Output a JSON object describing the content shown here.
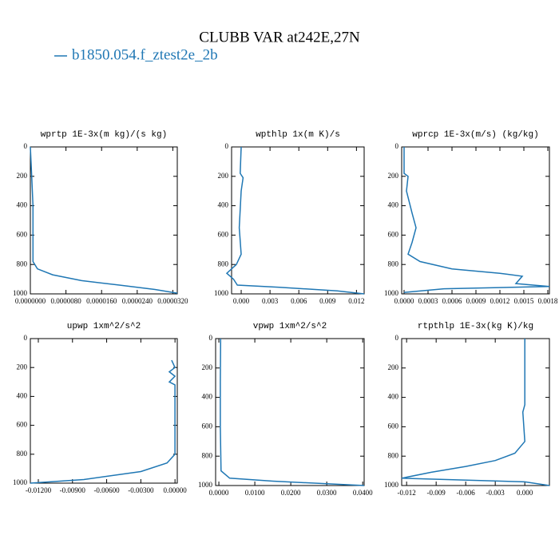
{
  "title": "CLUBB VAR at242E,27N",
  "legend": {
    "name": "b1850.054.f_ztest2e_2b",
    "color": "#1f77b4"
  },
  "chart_data": [
    {
      "type": "line",
      "title": "wprtp  1E-3x(m kg)/(s kg)",
      "y_inverted": true,
      "ylim": [
        0,
        1000
      ],
      "yticks": [
        0,
        200,
        400,
        600,
        800,
        1000
      ],
      "xlim": [
        0,
        3.3e-05
      ],
      "xticks": [
        {
          "value": 0,
          "label": "0.0000000"
        },
        {
          "value": 8e-06,
          "label": "0.0000080"
        },
        {
          "value": 1.6e-05,
          "label": "0.0000160"
        },
        {
          "value": 2.4e-05,
          "label": "0.0000240"
        },
        {
          "value": 3.2e-05,
          "label": "0.0000320"
        }
      ],
      "levels": [
        0,
        200,
        400,
        600,
        780,
        830,
        870,
        910,
        940,
        970,
        995
      ],
      "values": [
        0,
        3e-07,
        6e-07,
        6e-07,
        6e-07,
        1.6e-06,
        5e-06,
        1.15e-05,
        2e-05,
        2.8e-05,
        3.3e-05
      ]
    },
    {
      "type": "line",
      "title": "wpthlp  1x(m K)/s",
      "y_inverted": true,
      "ylim": [
        0,
        1000
      ],
      "yticks": [
        0,
        200,
        400,
        600,
        800,
        1000
      ],
      "xlim": [
        -0.001,
        0.0128
      ],
      "xticks": [
        {
          "value": 0,
          "label": "0.000"
        },
        {
          "value": 0.003,
          "label": "0.003"
        },
        {
          "value": 0.006,
          "label": "0.006"
        },
        {
          "value": 0.009,
          "label": "0.009"
        },
        {
          "value": 0.012,
          "label": "0.012"
        }
      ],
      "levels": [
        0,
        180,
        210,
        300,
        550,
        730,
        800,
        860,
        900,
        940,
        955,
        980,
        1000
      ],
      "values": [
        0,
        -0.0001,
        0.0002,
        0,
        -0.0002,
        0,
        -0.0005,
        -0.0015,
        -0.0008,
        -0.0004,
        0.004,
        0.01,
        0.0128
      ]
    },
    {
      "type": "line",
      "title": "wprcp  1E-3x(m/s) (kg/kg)",
      "y_inverted": true,
      "ylim": [
        0,
        1000
      ],
      "yticks": [
        0,
        200,
        400,
        600,
        800,
        1000
      ],
      "xlim": [
        -3e-05,
        0.00182
      ],
      "xticks": [
        {
          "value": 0,
          "label": "0.0000"
        },
        {
          "value": 0.0003,
          "label": "0.0003"
        },
        {
          "value": 0.0006,
          "label": "0.0006"
        },
        {
          "value": 0.0009,
          "label": "0.0009"
        },
        {
          "value": 0.0012,
          "label": "0.0012"
        },
        {
          "value": 0.0015,
          "label": "0.0015"
        },
        {
          "value": 0.0018,
          "label": "0.0018"
        }
      ],
      "levels": [
        0,
        180,
        200,
        300,
        450,
        550,
        650,
        730,
        780,
        830,
        860,
        880,
        930,
        950,
        965,
        990
      ],
      "values": [
        0,
        0,
        5e-05,
        3e-05,
        0.0001,
        0.00015,
        0.0001,
        5e-05,
        0.0002,
        0.0006,
        0.0012,
        0.00148,
        0.0014,
        0.00182,
        0.0005,
        0
      ]
    },
    {
      "type": "line",
      "title": "upwp  1xm^2/s^2",
      "y_inverted": true,
      "ylim": [
        0,
        1000
      ],
      "yticks": [
        0,
        200,
        400,
        600,
        800,
        1000
      ],
      "xlim": [
        -0.0127,
        0.0002
      ],
      "xticks": [
        {
          "value": -0.012,
          "label": "-0.01200"
        },
        {
          "value": -0.009,
          "label": "-0.00900"
        },
        {
          "value": -0.006,
          "label": "-0.00600"
        },
        {
          "value": -0.003,
          "label": "-0.00300"
        },
        {
          "value": 0,
          "label": "0.00000"
        }
      ],
      "levels": [
        150,
        200,
        230,
        260,
        300,
        320,
        800,
        860,
        920,
        975,
        1000
      ],
      "values": [
        -0.0003,
        0,
        -0.0005,
        0,
        -0.0005,
        0,
        0,
        -0.0007,
        -0.003,
        -0.008,
        -0.0127
      ]
    },
    {
      "type": "line",
      "title": "vpwp  1xm^2/s^2",
      "y_inverted": true,
      "ylim": [
        0,
        1000
      ],
      "yticks": [
        0,
        200,
        400,
        600,
        800,
        1000
      ],
      "xlim": [
        -0.0009,
        0.0404
      ],
      "xticks": [
        {
          "value": 0,
          "label": "0.0000"
        },
        {
          "value": 0.01,
          "label": "0.0100"
        },
        {
          "value": 0.02,
          "label": "0.0200"
        },
        {
          "value": 0.03,
          "label": "0.0300"
        },
        {
          "value": 0.04,
          "label": "0.0400"
        }
      ],
      "levels": [
        0,
        300,
        600,
        900,
        950,
        970,
        1000
      ],
      "values": [
        0.0005,
        0.0004,
        0.0004,
        0.0006,
        0.003,
        0.015,
        0.0404
      ]
    },
    {
      "type": "line",
      "title": "rtpthlp  1E-3x(kg K)/kg",
      "y_inverted": true,
      "ylim": [
        0,
        1000
      ],
      "yticks": [
        0,
        200,
        400,
        600,
        800,
        1000
      ],
      "xlim": [
        -0.0125,
        0.0025
      ],
      "xticks": [
        {
          "value": -0.012,
          "label": "-0.012"
        },
        {
          "value": -0.009,
          "label": "-0.009"
        },
        {
          "value": -0.006,
          "label": "-0.006"
        },
        {
          "value": -0.003,
          "label": "-0.003"
        },
        {
          "value": 0,
          "label": "0.000"
        }
      ],
      "levels": [
        0,
        450,
        500,
        700,
        780,
        830,
        870,
        910,
        950,
        975,
        1000
      ],
      "values": [
        0,
        0,
        -0.0002,
        0,
        -0.001,
        -0.003,
        -0.006,
        -0.0095,
        -0.0125,
        0,
        0.0025
      ]
    }
  ]
}
